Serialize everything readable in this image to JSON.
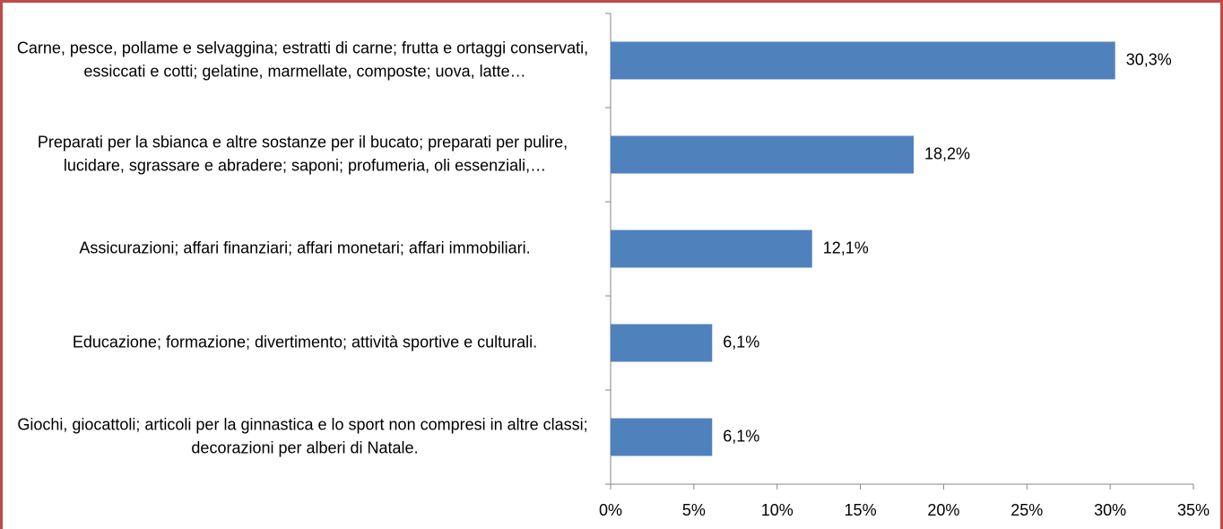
{
  "chart_data": {
    "type": "hbar",
    "categories": [
      "Carne, pesce, pollame e selvaggina; estratti di carne; frutta e ortaggi conservati, essiccati e cotti; gelatine, marmellate, composte; uova, latte…",
      "Preparati per la sbianca e altre sostanze per il bucato; preparati per pulire, lucidare, sgrassare e abradere; saponi; profumeria, oli essenziali,…",
      "Assicurazioni; affari finanziari; affari monetari; affari immobiliari.",
      "Educazione; formazione; divertimento; attività sportive e culturali.",
      "Giochi, giocattoli; articoli per la ginnastica e lo sport non compresi in altre classi; decorazioni per alberi di Natale."
    ],
    "values": [
      30.3,
      18.2,
      12.1,
      6.1,
      6.1
    ],
    "value_labels": [
      "30,3%",
      "18,2%",
      "12,1%",
      "6,1%",
      "6,1%"
    ],
    "color": "#4f81bd",
    "xlim": [
      0,
      35
    ],
    "xticks": [
      {
        "value": 0,
        "label": "0%"
      },
      {
        "value": 5,
        "label": "5%"
      },
      {
        "value": 10,
        "label": "10%"
      },
      {
        "value": 15,
        "label": "15%"
      },
      {
        "value": 20,
        "label": "20%"
      },
      {
        "value": 25,
        "label": "25%"
      },
      {
        "value": 30,
        "label": "30%"
      },
      {
        "value": 35,
        "label": "35%"
      }
    ]
  }
}
